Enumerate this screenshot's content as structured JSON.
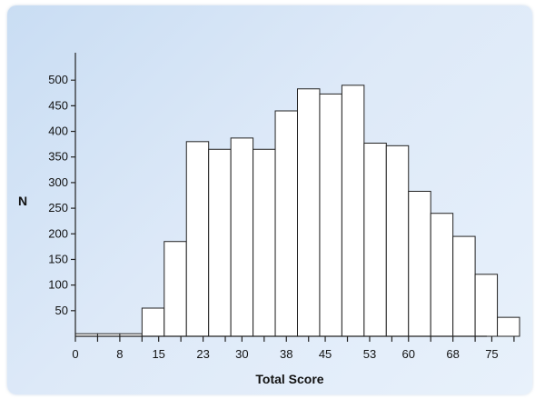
{
  "chart_data": {
    "type": "bar",
    "title": "",
    "xlabel": "Total Score",
    "ylabel": "N",
    "xlim": [
      0,
      80
    ],
    "ylim": [
      0,
      550
    ],
    "grid": false,
    "bin_width": 4,
    "bins": [
      {
        "x0": 0,
        "x1": 4,
        "value": 5
      },
      {
        "x0": 4,
        "x1": 8,
        "value": 5
      },
      {
        "x0": 8,
        "x1": 12,
        "value": 5
      },
      {
        "x0": 12,
        "x1": 16,
        "value": 55
      },
      {
        "x0": 16,
        "x1": 20,
        "value": 185
      },
      {
        "x0": 20,
        "x1": 24,
        "value": 380
      },
      {
        "x0": 24,
        "x1": 28,
        "value": 365
      },
      {
        "x0": 28,
        "x1": 32,
        "value": 387
      },
      {
        "x0": 32,
        "x1": 36,
        "value": 365
      },
      {
        "x0": 36,
        "x1": 40,
        "value": 440
      },
      {
        "x0": 40,
        "x1": 44,
        "value": 483
      },
      {
        "x0": 44,
        "x1": 48,
        "value": 473
      },
      {
        "x0": 48,
        "x1": 52,
        "value": 490
      },
      {
        "x0": 52,
        "x1": 56,
        "value": 377
      },
      {
        "x0": 56,
        "x1": 60,
        "value": 372
      },
      {
        "x0": 60,
        "x1": 64,
        "value": 283
      },
      {
        "x0": 64,
        "x1": 68,
        "value": 240
      },
      {
        "x0": 68,
        "x1": 72,
        "value": 195
      },
      {
        "x0": 72,
        "x1": 76,
        "value": 121
      },
      {
        "x0": 76,
        "x1": 80,
        "value": 37
      }
    ],
    "x_ticks": [
      {
        "value": 0,
        "label": "0"
      },
      {
        "value": 4,
        "label": ""
      },
      {
        "value": 8,
        "label": "8"
      },
      {
        "value": 12,
        "label": ""
      },
      {
        "value": 15,
        "label": "15"
      },
      {
        "value": 19,
        "label": ""
      },
      {
        "value": 23,
        "label": "23"
      },
      {
        "value": 27,
        "label": ""
      },
      {
        "value": 30,
        "label": "30"
      },
      {
        "value": 34,
        "label": ""
      },
      {
        "value": 38,
        "label": "38"
      },
      {
        "value": 42,
        "label": ""
      },
      {
        "value": 45,
        "label": "45"
      },
      {
        "value": 49,
        "label": ""
      },
      {
        "value": 53,
        "label": "53"
      },
      {
        "value": 57,
        "label": ""
      },
      {
        "value": 60,
        "label": "60"
      },
      {
        "value": 64,
        "label": ""
      },
      {
        "value": 68,
        "label": "68"
      },
      {
        "value": 72,
        "label": ""
      },
      {
        "value": 75,
        "label": "75"
      },
      {
        "value": 79,
        "label": ""
      }
    ],
    "y_ticks": [
      50,
      100,
      150,
      200,
      250,
      300,
      350,
      400,
      450,
      500
    ]
  }
}
